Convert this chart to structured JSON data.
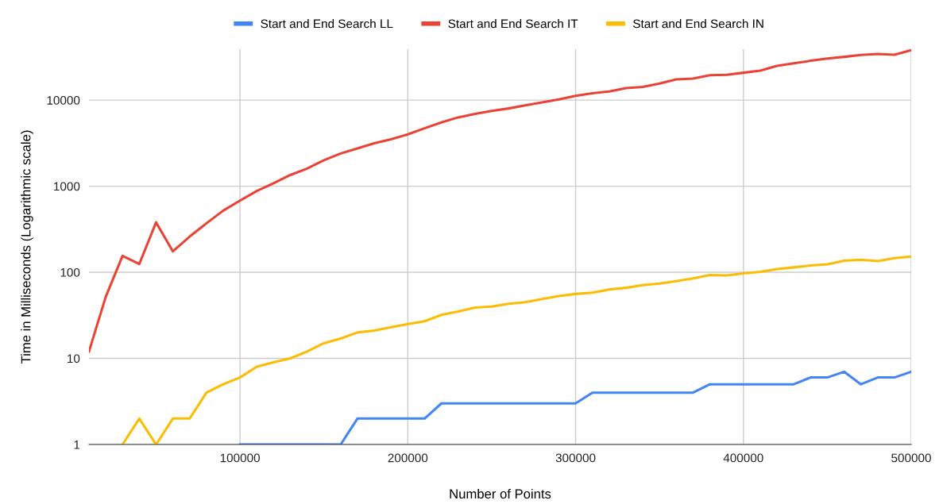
{
  "chart_data": {
    "type": "line",
    "xlabel": "Number of Points",
    "ylabel": "Time in Milliseconds (Logarithmic scale)",
    "x": [
      10000,
      20000,
      30000,
      40000,
      50000,
      60000,
      70000,
      80000,
      90000,
      100000,
      110000,
      120000,
      130000,
      140000,
      150000,
      160000,
      170000,
      180000,
      190000,
      200000,
      210000,
      220000,
      230000,
      240000,
      250000,
      260000,
      270000,
      280000,
      290000,
      300000,
      310000,
      320000,
      330000,
      340000,
      350000,
      360000,
      370000,
      380000,
      390000,
      400000,
      410000,
      420000,
      430000,
      440000,
      450000,
      460000,
      470000,
      480000,
      490000,
      500000
    ],
    "series": [
      {
        "name": "Start and End Search LL",
        "color": "#4285f4",
        "values": [
          null,
          null,
          null,
          null,
          null,
          null,
          null,
          null,
          null,
          1,
          1,
          1,
          1,
          1,
          1,
          1,
          2,
          2,
          2,
          2,
          2,
          3,
          3,
          3,
          3,
          3,
          3,
          3,
          3,
          3,
          4,
          4,
          4,
          4,
          4,
          4,
          4,
          5,
          5,
          5,
          5,
          5,
          5,
          6,
          6,
          7,
          5,
          6,
          6,
          7
        ]
      },
      {
        "name": "Start and End Search IT",
        "color": "#ea4335",
        "values": [
          12,
          52,
          155,
          125,
          380,
          175,
          260,
          370,
          520,
          680,
          880,
          1080,
          1350,
          1600,
          2000,
          2400,
          2750,
          3150,
          3500,
          4000,
          4700,
          5500,
          6300,
          6900,
          7500,
          8000,
          8700,
          9400,
          10200,
          11200,
          12000,
          12600,
          13800,
          14200,
          15600,
          17400,
          17800,
          19500,
          19700,
          20800,
          22000,
          25000,
          26800,
          28600,
          30400,
          31800,
          33400,
          34400,
          33600,
          38000
        ]
      },
      {
        "name": "Start and End Search IN",
        "color": "#fbbc04",
        "values": [
          null,
          null,
          1,
          2,
          1,
          2,
          2,
          4,
          5,
          6,
          8,
          9,
          10,
          12,
          15,
          17,
          20,
          21,
          23,
          25,
          27,
          32,
          35,
          39,
          40,
          43,
          45,
          49,
          53,
          56,
          58,
          63,
          66,
          71,
          74,
          79,
          85,
          93,
          92,
          97,
          101,
          109,
          114,
          120,
          124,
          136,
          140,
          135,
          146,
          152
        ]
      }
    ],
    "xlim": [
      10000,
      500000
    ],
    "xticks": [
      100000,
      200000,
      300000,
      400000,
      500000
    ],
    "ylim": [
      1,
      39000
    ],
    "yticks": [
      1,
      10,
      100,
      1000,
      10000
    ],
    "log": true,
    "grid": true,
    "legend": "top",
    "marker": "none",
    "line_style": "solid"
  }
}
